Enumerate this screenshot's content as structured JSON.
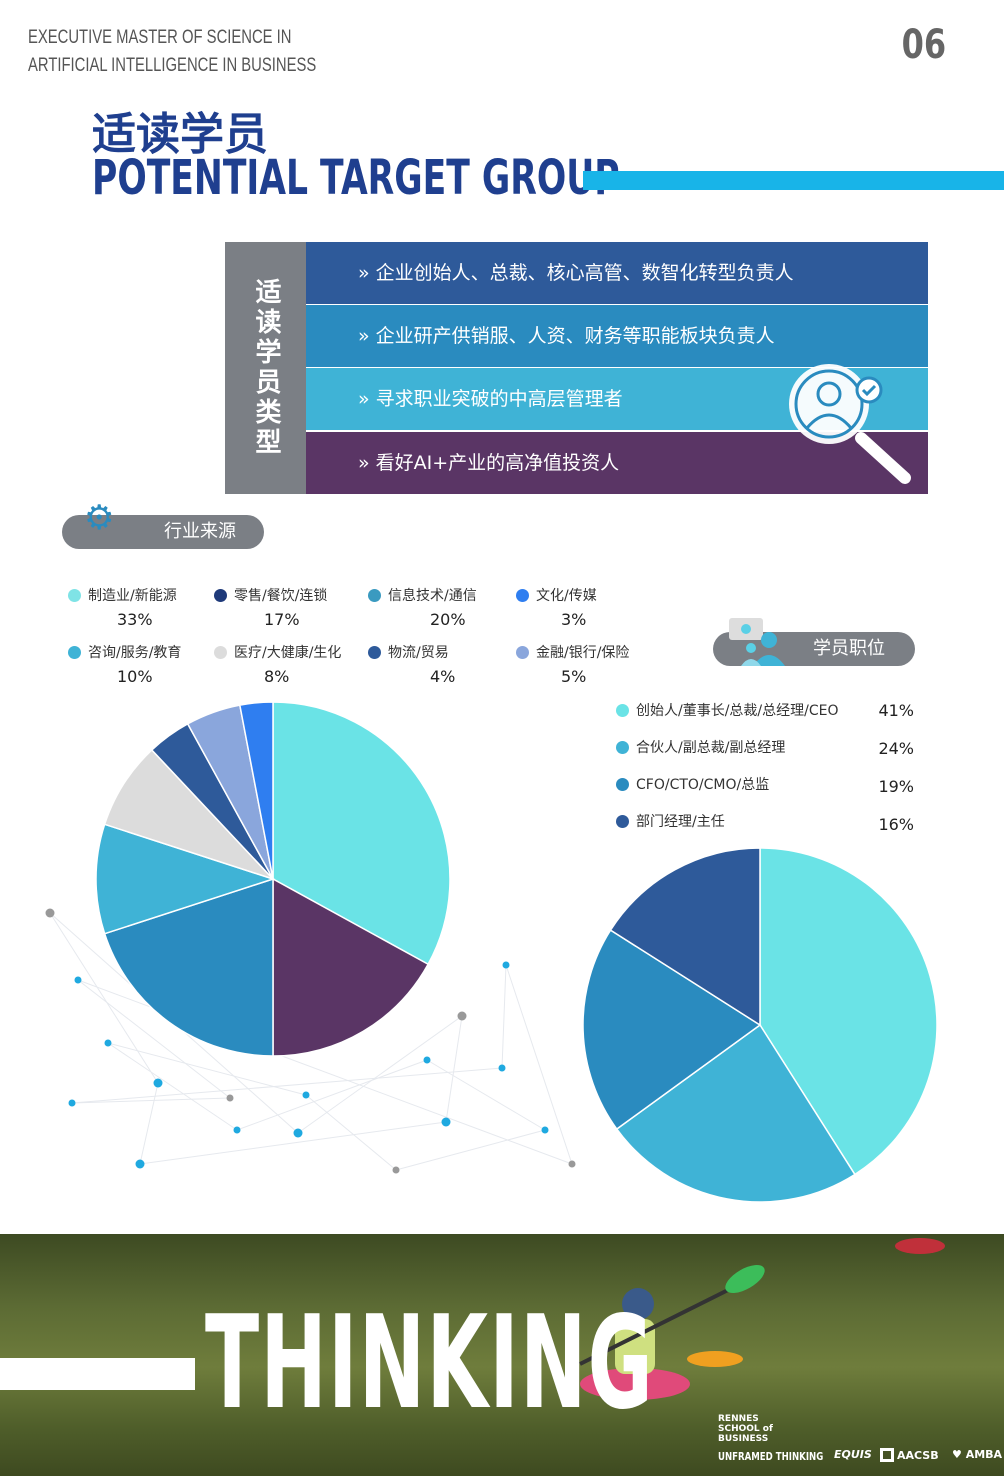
{
  "header": {
    "line1": "EXECUTIVE MASTER OF SCIENCE IN",
    "line2": "ARTIFICIAL INTELLIGENCE IN BUSINESS",
    "page_number": "06"
  },
  "title": {
    "cn": "适读学员",
    "en": "POTENTIAL TARGET GROUP"
  },
  "types": {
    "label": "适读学员类型",
    "rows": [
      {
        "text": "» 企业创始人、总裁、核心高管、数智化转型负责人",
        "color": "#2e5a9a"
      },
      {
        "text": "» 企业研产供销服、人资、财务等职能板块负责人",
        "color": "#2a8bbf"
      },
      {
        "text": "» 寻求职业突破的中高层管理者",
        "color": "#3fb3d6"
      },
      {
        "text": "» 看好AI+产业的高净值投资人",
        "color": "#5a3565"
      }
    ],
    "icon": "magnifier-person-check-icon"
  },
  "industry": {
    "label": "行业来源",
    "icon": "gears-icon"
  },
  "position": {
    "label": "学员职位",
    "icon": "people-lightbulb-icon"
  },
  "chart_data": [
    {
      "type": "pie",
      "start": "top",
      "direction": "clockwise",
      "categories": [
        "制造业/新能源",
        "零售/餐饮/连锁",
        "信息技术/通信",
        "咨询/服务/教育",
        "医疗/大健康/生化",
        "物流/贸易",
        "金融/银行/保险",
        "文化/传媒"
      ],
      "labels": [
        "33%",
        "17%",
        "20%",
        "10%",
        "8%",
        "4%",
        "5%",
        "3%"
      ],
      "values": [
        33,
        17,
        20,
        10,
        8,
        4,
        5,
        3
      ],
      "colors": [
        "#6ae3e6",
        "#5a3565",
        "#2a8bbf",
        "#3fb3d6",
        "#dcdcdc",
        "#2e5a9a",
        "#8aa6dc",
        "#2f7ef0"
      ],
      "legend_colors": [
        "#7fe3e6",
        "#1f3a7a",
        "#3a9ac0",
        "#2f7ef0",
        "#3fb3d6",
        "#dcdcdc",
        "#2e5a9a",
        "#8aa6dc"
      ]
    },
    {
      "type": "pie",
      "start": "top",
      "direction": "clockwise",
      "categories": [
        "创始人/董事长/总裁/总经理/CEO",
        "合伙人/副总裁/副总经理",
        "CFO/CTO/CMO/总监",
        "部门经理/主任"
      ],
      "labels": [
        "41%",
        "24%",
        "19%",
        "16%"
      ],
      "values": [
        41,
        24,
        19,
        16
      ],
      "colors": [
        "#6ae3e6",
        "#3fb3d6",
        "#2a8bbf",
        "#2e5a9a"
      ]
    }
  ],
  "banner": {
    "word": "THINKING",
    "school": "RENNES SCHOOL of BUSINESS",
    "slogan": "UNFRAMED THINKING",
    "accreditations": [
      "EQUIS",
      "AACSB",
      "AMBA"
    ]
  }
}
